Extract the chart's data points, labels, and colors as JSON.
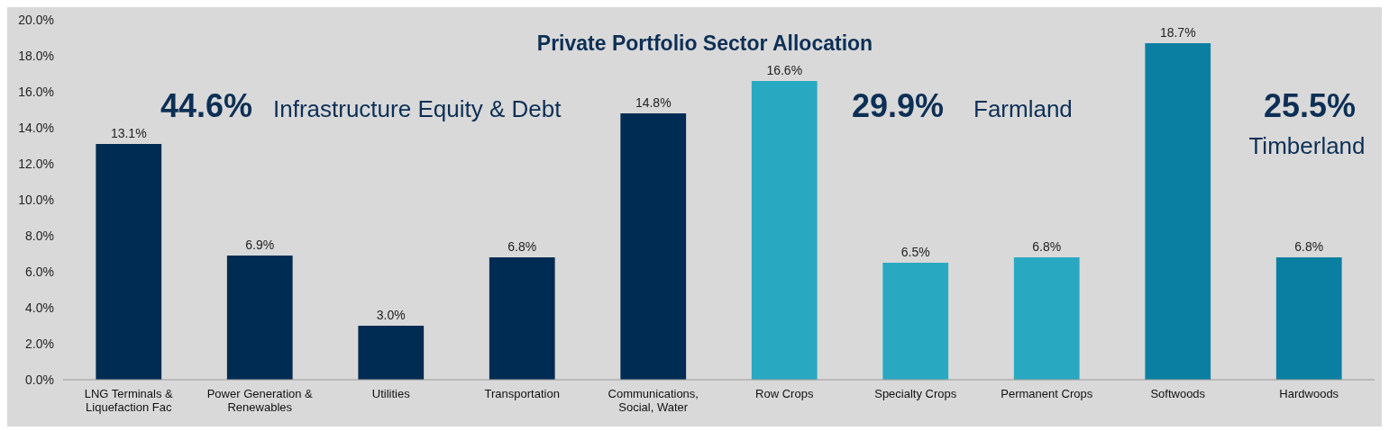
{
  "chart_data": {
    "type": "bar",
    "title": "Private Portfolio Sector Allocation",
    "categories": [
      "LNG Terminals & Liquefaction Fac",
      "Power Generation & Renewables",
      "Utilities",
      "Transportation",
      "Communications, Social, Water",
      "Row Crops",
      "Specialty Crops",
      "Permanent Crops",
      "Softwoods",
      "Hardwoods"
    ],
    "values": [
      13.1,
      6.9,
      3.0,
      6.8,
      14.8,
      16.6,
      6.5,
      6.8,
      18.7,
      6.8
    ],
    "colors": [
      "#002b52",
      "#002b52",
      "#002b52",
      "#002b52",
      "#002b52",
      "#29a9c1",
      "#29a9c1",
      "#29a9c1",
      "#0b7fa2",
      "#0b7fa2"
    ],
    "value_labels": [
      "13.1%",
      "6.9%",
      "3.0%",
      "6.8%",
      "14.8%",
      "16.6%",
      "6.5%",
      "6.8%",
      "18.7%",
      "6.8%"
    ],
    "ylim": [
      0,
      20
    ],
    "yticks": [
      {
        "value": 0,
        "label": "0.0%"
      },
      {
        "value": 2,
        "label": "2.0%"
      },
      {
        "value": 4,
        "label": "4.0%"
      },
      {
        "value": 6,
        "label": "6.0%"
      },
      {
        "value": 8,
        "label": "8.0%"
      },
      {
        "value": 10,
        "label": "10.0%"
      },
      {
        "value": 12,
        "label": "12.0%"
      },
      {
        "value": 14,
        "label": "14.0%"
      },
      {
        "value": 16,
        "label": "16.0%"
      },
      {
        "value": 18,
        "label": "18.0%"
      },
      {
        "value": 20,
        "label": "20.0%"
      }
    ],
    "annotations": [
      "44.6%",
      "Infrastructure Equity & Debt",
      "29.9%",
      "Farmland",
      "25.5%",
      "Timberland"
    ]
  }
}
